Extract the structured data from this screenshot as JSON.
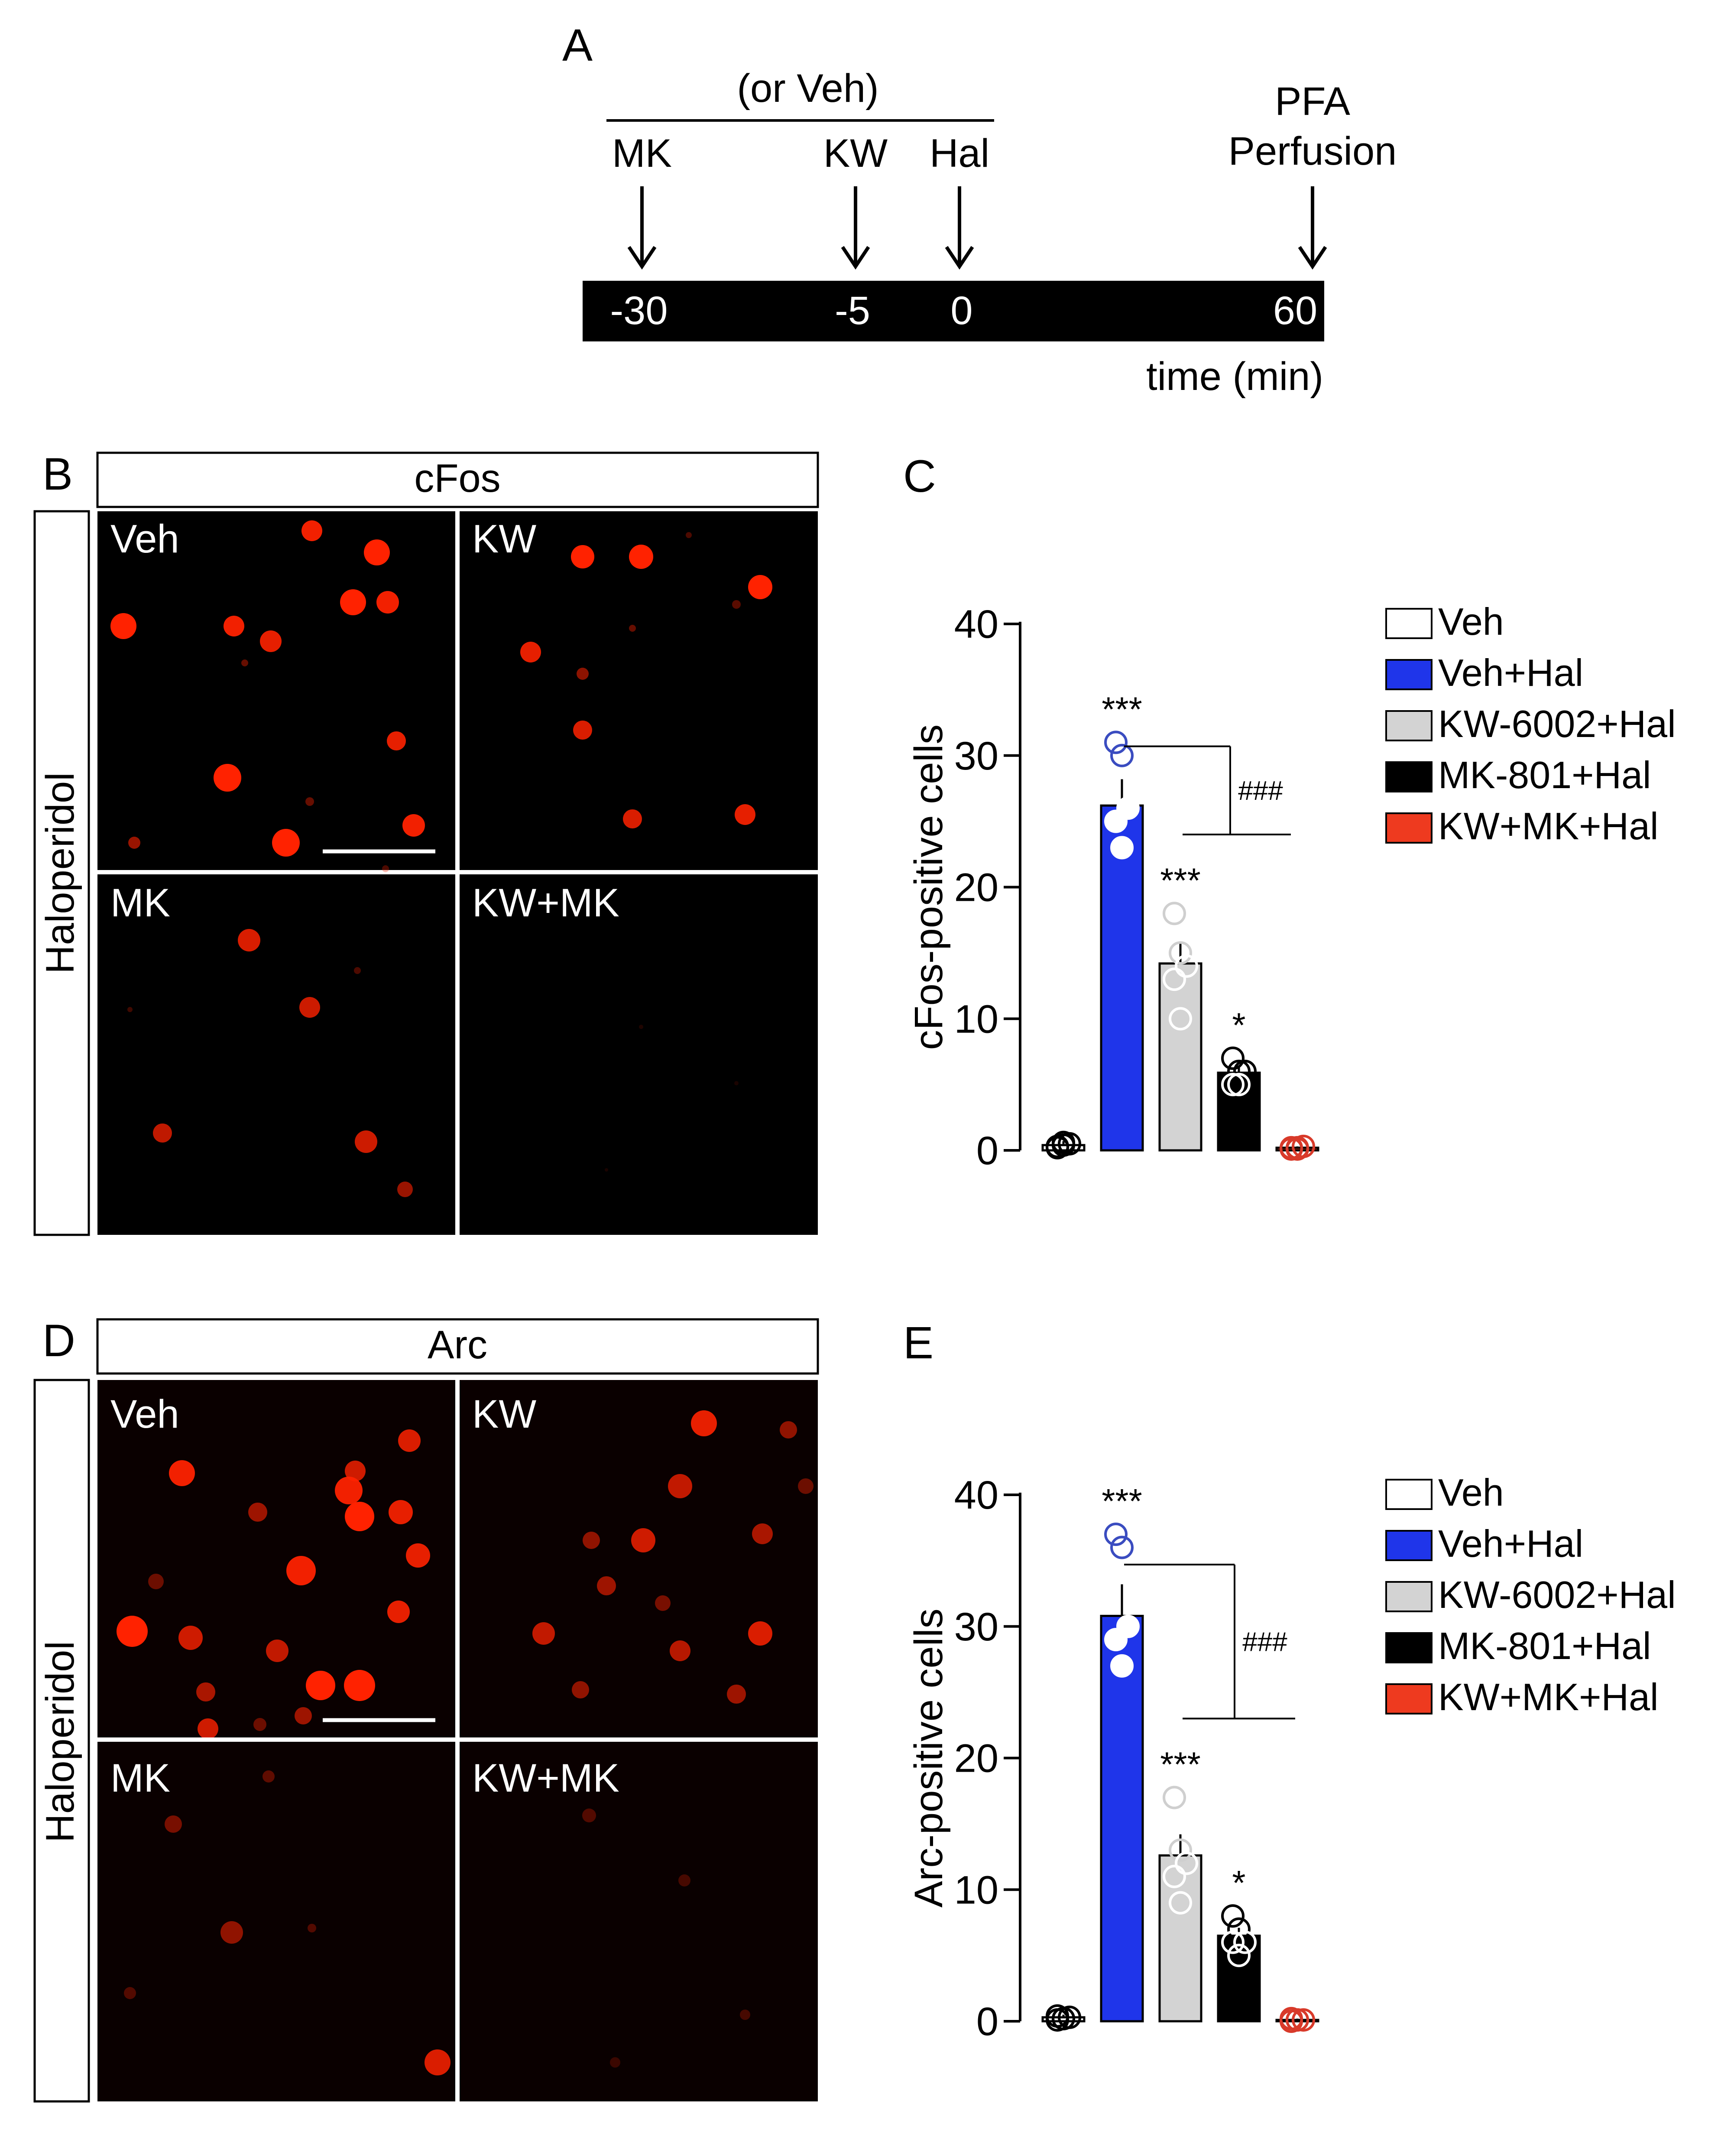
{
  "panel_letters": {
    "a": "A",
    "b": "B",
    "c": "C",
    "d": "D",
    "e": "E"
  },
  "timeline": {
    "or_veh": "(or Veh)",
    "labels": {
      "mk": "MK",
      "kw": "KW",
      "hal": "Hal",
      "pfa": "PFA",
      "perfusion": "Perfusion"
    },
    "ticks": [
      "-30",
      "-5",
      "0",
      "60"
    ],
    "axis_label": "time (min)"
  },
  "micrographs": [
    {
      "header": "cFos",
      "side_label": "Haloperidol",
      "tiles": [
        "Veh",
        "KW",
        "MK",
        "KW+MK"
      ],
      "colors": {
        "bg": "#000000",
        "signal": "#ff2200",
        "border": "#ffffff"
      }
    },
    {
      "header": "Arc",
      "side_label": "Haloperidol",
      "tiles": [
        "Veh",
        "KW",
        "MK",
        "KW+MK"
      ],
      "colors": {
        "bg": "#0a0000",
        "signal": "#ff2200",
        "border": "#ffffff"
      }
    }
  ],
  "chart_data": [
    {
      "type": "bar",
      "panel": "C",
      "ylabel": "cFos-positive cells",
      "ylim": [
        0,
        40
      ],
      "yticks": [
        "0",
        "10",
        "20",
        "30",
        "40"
      ],
      "categories": [
        "Veh",
        "Veh+Hal",
        "KW-6002+Hal",
        "MK-801+Hal",
        "KW+MK+Hal"
      ],
      "values": [
        0.4,
        26.2,
        14.2,
        5.9,
        0.2
      ],
      "errors": [
        0.3,
        2.0,
        1.5,
        0.5,
        0.1
      ],
      "points": [
        [
          0.2,
          0.4,
          0.5,
          0.3,
          0.6
        ],
        [
          31,
          30,
          26,
          25,
          23
        ],
        [
          18,
          15,
          14,
          13,
          10
        ],
        [
          7,
          6,
          6,
          5,
          5
        ],
        [
          0.1,
          0.2,
          0.3,
          0.2,
          0.1
        ]
      ],
      "colors": [
        "#ffffff",
        "#1f35ea",
        "#d3d3d3",
        "#000000",
        "#ee3a1f"
      ],
      "point_colors": [
        "#000000",
        "#3a4cc0",
        "#cfcfcf",
        "#000000",
        "#d83a2a"
      ],
      "significance": [
        "",
        "***",
        "***",
        "*",
        ""
      ],
      "bracket_label": "###",
      "legend": [
        "Veh",
        "Veh+Hal",
        "KW-6002+Hal",
        "MK-801+Hal",
        "KW+MK+Hal"
      ]
    },
    {
      "type": "bar",
      "panel": "E",
      "ylabel": "Arc-positive cells",
      "ylim": [
        0,
        40
      ],
      "yticks": [
        "0",
        "10",
        "20",
        "30",
        "40"
      ],
      "categories": [
        "Veh",
        "Veh+Hal",
        "KW-6002+Hal",
        "MK-801+Hal",
        "KW+MK+Hal"
      ],
      "values": [
        0.3,
        30.8,
        12.6,
        6.5,
        0.1
      ],
      "errors": [
        0.2,
        2.4,
        1.6,
        0.6,
        0.1
      ],
      "points": [
        [
          0.1,
          0.2,
          0.3,
          0.4,
          0.2
        ],
        [
          37,
          36,
          30,
          29,
          27
        ],
        [
          17,
          13,
          12,
          11,
          9
        ],
        [
          8,
          7,
          6,
          6,
          5
        ],
        [
          0.0,
          0.1,
          0.1,
          0.2,
          0.1
        ]
      ],
      "colors": [
        "#ffffff",
        "#1f35ea",
        "#d3d3d3",
        "#000000",
        "#ee3a1f"
      ],
      "point_colors": [
        "#000000",
        "#3a4cc0",
        "#cfcfcf",
        "#000000",
        "#d83a2a"
      ],
      "significance": [
        "",
        "***",
        "***",
        "*",
        ""
      ],
      "bracket_label": "###",
      "legend": [
        "Veh",
        "Veh+Hal",
        "KW-6002+Hal",
        "MK-801+Hal",
        "KW+MK+Hal"
      ]
    }
  ]
}
